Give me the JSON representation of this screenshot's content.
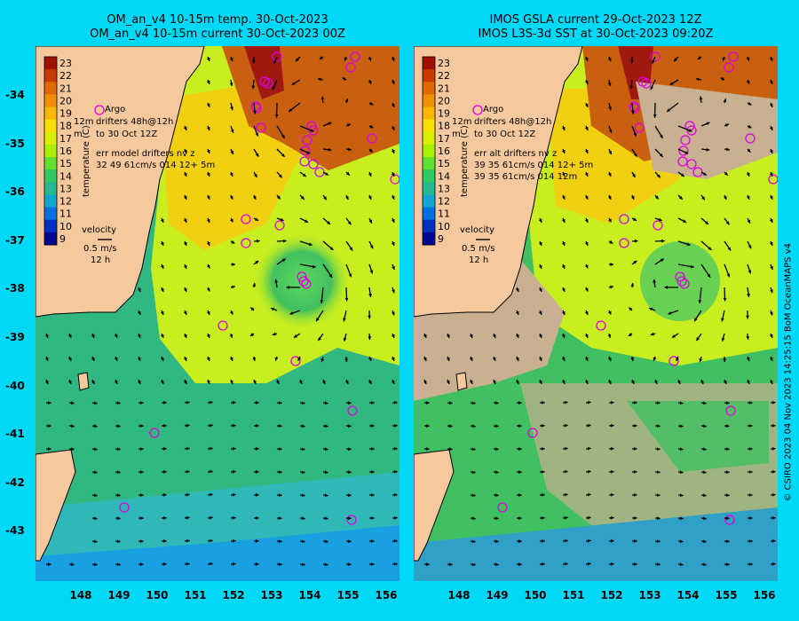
{
  "left_panel": {
    "title_line1": "OM_an_v4  10-15m temp. 30-Oct-2023",
    "title_line2": "OM_an_v4  10-15m current 30-Oct-2023 00Z",
    "colorbar_label": "temperature (C)",
    "legend": {
      "argo": "Argo",
      "drifters": "drifters 48h@12h",
      "drifters_prefix": "12m",
      "to_label": "to 30 Oct 12Z",
      "m_label": "m",
      "err_title": "err model drifters nv z",
      "err_line1": "32 49 61cm/s 014 12+ 5m",
      "err_line2": ""
    }
  },
  "right_panel": {
    "title_line1": "IMOS GSLA current 29-Oct-2023 12Z",
    "title_line2": "IMOS L3S-3d SST at 30-Oct-2023 09:20Z",
    "colorbar_label": "temperature (C)",
    "legend": {
      "argo": "Argo",
      "drifters": "drifters 48h@12h",
      "drifters_prefix": "12m",
      "to_label": "to 30 Oct 12Z",
      "m_label": "m",
      "err_title": "err alt drifters nv z",
      "err_line1": "39 35 61cm/s 014 12+ 5m",
      "err_line2": "39 35 61cm/s 014 12m"
    }
  },
  "velocity_legend": {
    "title": "velocity",
    "speed": "0.5 m/s",
    "time": "12 h"
  },
  "colorbar_ticks": [
    "23",
    "22",
    "21",
    "20",
    "19",
    "18",
    "17",
    "16",
    "15",
    "14",
    "13",
    "12",
    "11",
    "10",
    "9"
  ],
  "lat_ticks": [
    "-34",
    "-35",
    "-36",
    "-37",
    "-38",
    "-39",
    "-40",
    "-41",
    "-42",
    "-43"
  ],
  "lon_ticks": [
    "148",
    "149",
    "150",
    "151",
    "152",
    "153",
    "154",
    "155",
    "156"
  ],
  "credit": "© CSIRO 2023  04 Nov 2023 14:25:15 BoM OceanMAPS v4",
  "colors": {
    "background": "#00d8f8",
    "land": "#f5c99d",
    "argo": "#e000e0",
    "colorbar": [
      "#a01000",
      "#c83a00",
      "#e06800",
      "#f09000",
      "#f8b800",
      "#f8e000",
      "#d8f000",
      "#a8f000",
      "#60e030",
      "#30c860",
      "#28b890",
      "#10a8d0",
      "#0070e0",
      "#0030c0",
      "#000890"
    ]
  }
}
